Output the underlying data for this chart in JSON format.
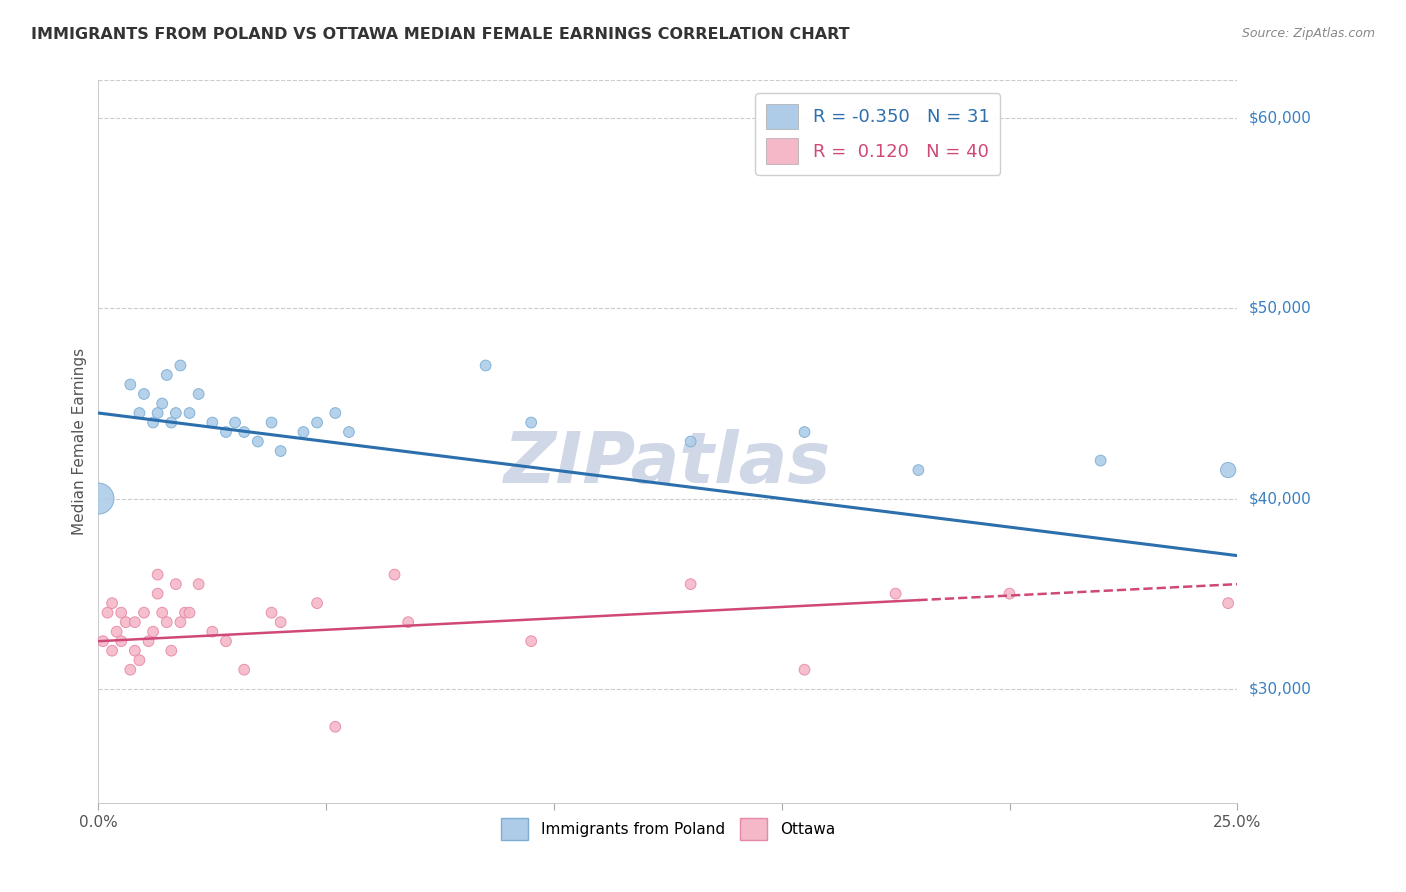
{
  "title": "IMMIGRANTS FROM POLAND VS OTTAWA MEDIAN FEMALE EARNINGS CORRELATION CHART",
  "source": "Source: ZipAtlas.com",
  "ylabel": "Median Female Earnings",
  "x_min": 0.0,
  "x_max": 0.25,
  "y_min": 24000,
  "y_max": 62000,
  "yticks": [
    30000,
    40000,
    50000,
    60000
  ],
  "ytick_labels": [
    "$30,000",
    "$40,000",
    "$50,000",
    "$60,000"
  ],
  "xticks": [
    0.0,
    0.05,
    0.1,
    0.15,
    0.2,
    0.25
  ],
  "xtick_labels": [
    "0.0%",
    "",
    "",
    "",
    "",
    "25.0%"
  ],
  "blue_scatter": {
    "x": [
      0.0,
      0.007,
      0.009,
      0.01,
      0.012,
      0.013,
      0.014,
      0.015,
      0.016,
      0.017,
      0.018,
      0.02,
      0.022,
      0.025,
      0.028,
      0.03,
      0.032,
      0.035,
      0.038,
      0.04,
      0.045,
      0.048,
      0.052,
      0.055,
      0.085,
      0.095,
      0.13,
      0.155,
      0.18,
      0.22,
      0.248
    ],
    "y": [
      40000,
      46000,
      44500,
      45500,
      44000,
      44500,
      45000,
      46500,
      44000,
      44500,
      47000,
      44500,
      45500,
      44000,
      43500,
      44000,
      43500,
      43000,
      44000,
      42500,
      43500,
      44000,
      44500,
      43500,
      47000,
      44000,
      43000,
      43500,
      41500,
      42000,
      41500
    ],
    "sizes": [
      500,
      60,
      60,
      60,
      60,
      60,
      60,
      60,
      60,
      60,
      60,
      60,
      60,
      60,
      60,
      60,
      60,
      60,
      60,
      60,
      60,
      60,
      60,
      60,
      60,
      60,
      60,
      60,
      60,
      60,
      120
    ],
    "color": "#aecce8",
    "edgecolor": "#7baed4",
    "trend_color": "#2c6fad",
    "R": -0.35,
    "N": 31
  },
  "pink_scatter": {
    "x": [
      0.001,
      0.002,
      0.003,
      0.003,
      0.004,
      0.005,
      0.005,
      0.006,
      0.007,
      0.008,
      0.008,
      0.009,
      0.01,
      0.011,
      0.012,
      0.013,
      0.013,
      0.014,
      0.015,
      0.016,
      0.017,
      0.018,
      0.019,
      0.02,
      0.022,
      0.025,
      0.028,
      0.032,
      0.038,
      0.04,
      0.048,
      0.052,
      0.065,
      0.068,
      0.095,
      0.13,
      0.155,
      0.175,
      0.2,
      0.248
    ],
    "y": [
      32500,
      34000,
      32000,
      34500,
      33000,
      32500,
      34000,
      33500,
      31000,
      32000,
      33500,
      31500,
      34000,
      32500,
      33000,
      35000,
      36000,
      34000,
      33500,
      32000,
      35500,
      33500,
      34000,
      34000,
      35500,
      33000,
      32500,
      31000,
      34000,
      33500,
      34500,
      28000,
      36000,
      33500,
      32500,
      35500,
      31000,
      35000,
      35000,
      34500
    ],
    "sizes": [
      60,
      60,
      60,
      60,
      60,
      60,
      60,
      60,
      60,
      60,
      60,
      60,
      60,
      60,
      60,
      60,
      60,
      60,
      60,
      60,
      60,
      60,
      60,
      60,
      60,
      60,
      60,
      60,
      60,
      60,
      60,
      60,
      60,
      60,
      60,
      60,
      60,
      60,
      60,
      60
    ],
    "color": "#f4b8c8",
    "edgecolor": "#e888a8",
    "trend_color": "#d04878",
    "trend_solid_end": 0.18,
    "R": 0.12,
    "N": 40
  },
  "background_color": "#ffffff",
  "grid_color": "#cccccc",
  "title_color": "#333333",
  "axis_color": "#555555",
  "right_label_color": "#3a7fc1",
  "watermark": "ZIPatlas",
  "watermark_color": "#d0d8e8",
  "watermark_fontsize": 52
}
